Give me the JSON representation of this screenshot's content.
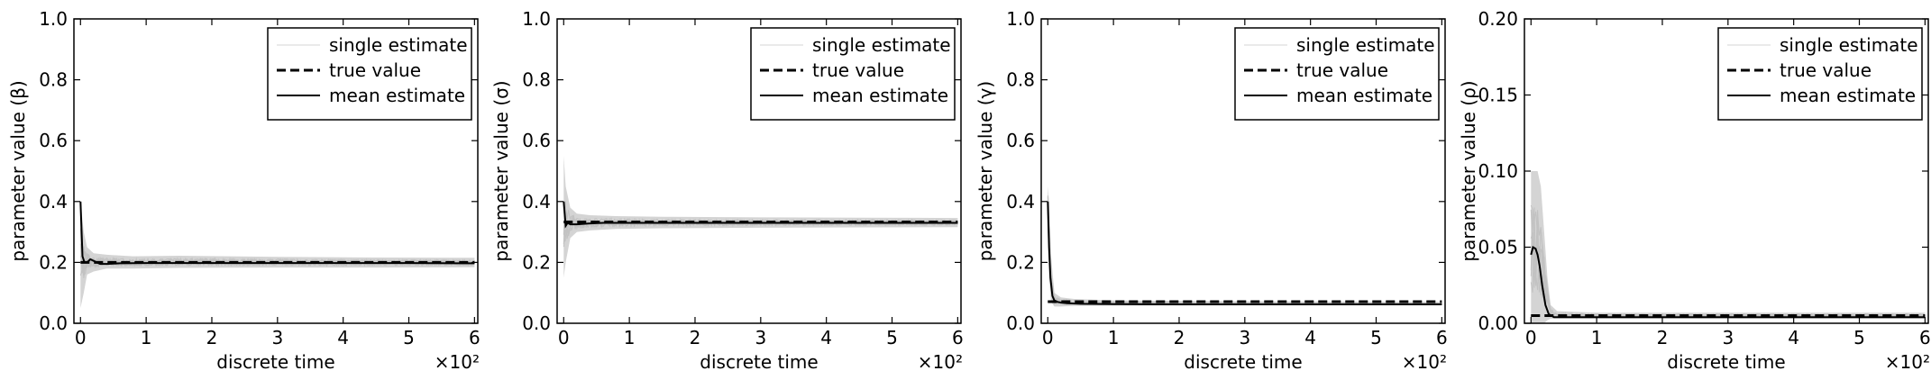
{
  "chart_data": [
    {
      "type": "line",
      "ylabel": "parameter value (β)",
      "xlabel": "discrete time",
      "x_multiplier": "×10²",
      "xlim": [
        -0.1,
        6.05
      ],
      "ylim": [
        0.0,
        1.0
      ],
      "xticks": [
        0,
        1,
        2,
        3,
        4,
        5,
        6
      ],
      "xtick_labels": [
        "0",
        "1",
        "2",
        "3",
        "4",
        "5",
        "6"
      ],
      "yticks": [
        0.0,
        0.2,
        0.4,
        0.6,
        0.8,
        1.0
      ],
      "ytick_labels": [
        "0.0",
        "0.2",
        "0.4",
        "0.6",
        "0.8",
        "1.0"
      ],
      "legend": {
        "placement": "top-right",
        "entries": [
          "single estimate",
          "true value",
          "mean estimate"
        ]
      },
      "true_value": 0.2,
      "mean_estimate": {
        "x": [
          0,
          0.03,
          0.06,
          0.1,
          0.15,
          0.2,
          0.3,
          0.4,
          0.6,
          1,
          2,
          3,
          4,
          5,
          6
        ],
        "y": [
          0.4,
          0.22,
          0.2,
          0.2,
          0.21,
          0.205,
          0.195,
          0.195,
          0.197,
          0.198,
          0.198,
          0.198,
          0.198,
          0.198,
          0.197
        ]
      },
      "single_estimate_band": {
        "x": [
          0,
          0.05,
          0.1,
          0.2,
          0.4,
          0.8,
          1.5,
          3,
          4.5,
          6
        ],
        "lower": [
          0.05,
          0.1,
          0.16,
          0.17,
          0.18,
          0.18,
          0.182,
          0.183,
          0.183,
          0.184
        ],
        "upper": [
          0.4,
          0.3,
          0.25,
          0.23,
          0.225,
          0.22,
          0.222,
          0.218,
          0.216,
          0.215
        ]
      }
    },
    {
      "type": "line",
      "ylabel": "parameter value (σ)",
      "xlabel": "discrete time",
      "x_multiplier": "×10²",
      "xlim": [
        -0.1,
        6.05
      ],
      "ylim": [
        0.0,
        1.0
      ],
      "xticks": [
        0,
        1,
        2,
        3,
        4,
        5,
        6
      ],
      "xtick_labels": [
        "0",
        "1",
        "2",
        "3",
        "4",
        "5",
        "6"
      ],
      "yticks": [
        0.0,
        0.2,
        0.4,
        0.6,
        0.8,
        1.0
      ],
      "ytick_labels": [
        "0.0",
        "0.2",
        "0.4",
        "0.6",
        "0.8",
        "1.0"
      ],
      "legend": {
        "placement": "top-right",
        "entries": [
          "single estimate",
          "true value",
          "mean estimate"
        ]
      },
      "true_value": 0.333,
      "mean_estimate": {
        "x": [
          0,
          0.03,
          0.06,
          0.1,
          0.2,
          0.4,
          0.6,
          1,
          2,
          3,
          4,
          5,
          6
        ],
        "y": [
          0.4,
          0.32,
          0.33,
          0.325,
          0.325,
          0.328,
          0.33,
          0.33,
          0.33,
          0.33,
          0.33,
          0.33,
          0.33
        ]
      },
      "single_estimate_band": {
        "x": [
          0,
          0.03,
          0.1,
          0.2,
          0.4,
          0.8,
          1.5,
          3,
          4.5,
          6
        ],
        "lower": [
          0.15,
          0.2,
          0.28,
          0.3,
          0.305,
          0.31,
          0.312,
          0.314,
          0.315,
          0.316
        ],
        "upper": [
          0.55,
          0.45,
          0.38,
          0.36,
          0.355,
          0.352,
          0.35,
          0.348,
          0.347,
          0.346
        ]
      }
    },
    {
      "type": "line",
      "ylabel": "parameter value (γ)",
      "xlabel": "discrete time",
      "x_multiplier": "×10²",
      "xlim": [
        -0.1,
        6.05
      ],
      "ylim": [
        0.0,
        1.0
      ],
      "xticks": [
        0,
        1,
        2,
        3,
        4,
        5,
        6
      ],
      "xtick_labels": [
        "0",
        "1",
        "2",
        "3",
        "4",
        "5",
        "6"
      ],
      "yticks": [
        0.0,
        0.2,
        0.4,
        0.6,
        0.8,
        1.0
      ],
      "ytick_labels": [
        "0.0",
        "0.2",
        "0.4",
        "0.6",
        "0.8",
        "1.0"
      ],
      "legend": {
        "placement": "top-right",
        "entries": [
          "single estimate",
          "true value",
          "mean estimate"
        ]
      },
      "true_value": 0.071,
      "mean_estimate": {
        "x": [
          0,
          0.02,
          0.04,
          0.07,
          0.1,
          0.15,
          0.2,
          0.3,
          0.5,
          1,
          2,
          3,
          4,
          5,
          6
        ],
        "y": [
          0.4,
          0.25,
          0.15,
          0.09,
          0.075,
          0.07,
          0.068,
          0.066,
          0.064,
          0.063,
          0.062,
          0.062,
          0.062,
          0.062,
          0.062
        ]
      },
      "single_estimate_band": {
        "x": [
          0,
          0.02,
          0.05,
          0.1,
          0.2,
          0.4,
          1,
          3,
          6
        ],
        "lower": [
          0.3,
          0.15,
          0.07,
          0.055,
          0.055,
          0.057,
          0.058,
          0.059,
          0.059
        ],
        "upper": [
          0.45,
          0.4,
          0.22,
          0.1,
          0.085,
          0.08,
          0.075,
          0.072,
          0.07
        ]
      }
    },
    {
      "type": "line",
      "ylabel": "parameter value (ρ)",
      "xlabel": "discrete time",
      "x_multiplier": "×10²",
      "xlim": [
        -0.1,
        6.05
      ],
      "ylim": [
        0.0,
        0.2
      ],
      "xticks": [
        0,
        1,
        2,
        3,
        4,
        5,
        6
      ],
      "xtick_labels": [
        "0",
        "1",
        "2",
        "3",
        "4",
        "5",
        "6"
      ],
      "yticks": [
        0.0,
        0.05,
        0.1,
        0.15,
        0.2
      ],
      "ytick_labels": [
        "0.00",
        "0.05",
        "0.10",
        "0.15",
        "0.20"
      ],
      "legend": {
        "placement": "top-right",
        "entries": [
          "single estimate",
          "true value",
          "mean estimate"
        ]
      },
      "true_value": 0.005,
      "mean_estimate": {
        "x": [
          0,
          0.03,
          0.07,
          0.1,
          0.13,
          0.17,
          0.22,
          0.27,
          0.35,
          0.5,
          1,
          2,
          3,
          4,
          5,
          6
        ],
        "y": [
          0.045,
          0.05,
          0.049,
          0.045,
          0.038,
          0.025,
          0.012,
          0.006,
          0.004,
          0.004,
          0.004,
          0.004,
          0.004,
          0.004,
          0.004,
          0.004
        ]
      },
      "single_estimate_band": {
        "x": [
          0,
          0.05,
          0.1,
          0.15,
          0.2,
          0.25,
          0.3,
          0.4,
          1,
          3,
          6
        ],
        "lower": [
          0.0,
          0.0,
          0.0,
          0.0,
          0.0,
          0.002,
          0.003,
          0.003,
          0.003,
          0.003,
          0.003
        ],
        "upper": [
          0.1,
          0.1,
          0.1,
          0.09,
          0.06,
          0.03,
          0.012,
          0.008,
          0.007,
          0.007,
          0.007
        ]
      }
    }
  ]
}
